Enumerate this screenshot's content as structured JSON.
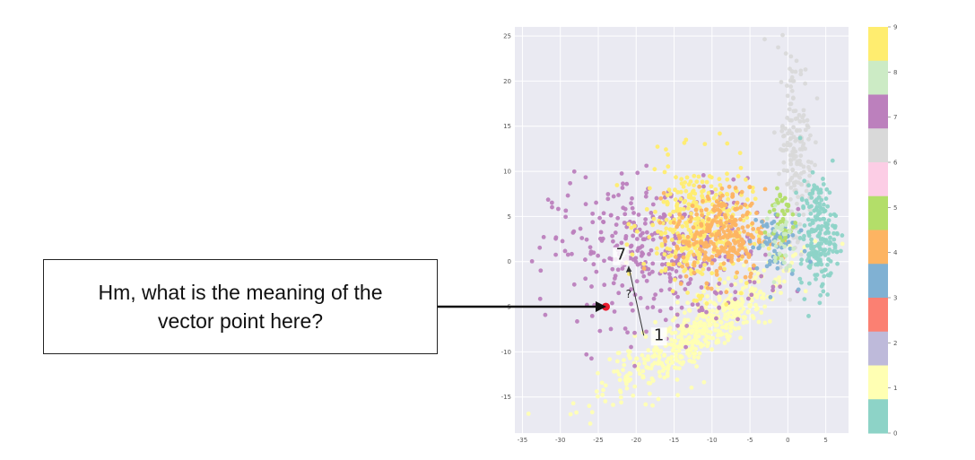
{
  "callout": {
    "text": "Hm, what is the meaning of the vector point here?"
  },
  "chart_data": {
    "type": "scatter",
    "title": "",
    "xlabel": "",
    "ylabel": "",
    "xlim": [
      -36,
      8
    ],
    "ylim": [
      -19,
      26
    ],
    "xticks": [
      -35,
      -30,
      -25,
      -20,
      -15,
      -10,
      -5,
      0,
      5
    ],
    "yticks": [
      -15,
      -10,
      -5,
      0,
      5,
      10,
      15,
      20,
      25
    ],
    "grid": true,
    "background": "#eaeaf2",
    "colorbar": {
      "labels": [
        "0",
        "1",
        "2",
        "3",
        "4",
        "5",
        "6",
        "7",
        "8",
        "9"
      ],
      "colors": [
        "#8dd3c7",
        "#ffffb3",
        "#bebada",
        "#fb8072",
        "#80b1d3",
        "#fdb462",
        "#b3de69",
        "#fccde5",
        "#d9d9d9",
        "#bc80bd",
        "#ccebc5",
        "#ffed6f"
      ]
    },
    "class_colors": {
      "0": "#8dd3c7",
      "1": "#ffffb3",
      "2": "#bebada",
      "3": "#80b1d3",
      "4": "#fdb462",
      "5": "#b3de69",
      "6": "#d9d9d9",
      "7": "#bc80bd",
      "8": "#ccebc5",
      "9": "#ffed6f"
    },
    "clusters": [
      {
        "name": "1",
        "center": [
          -12,
          -8
        ],
        "spread": [
          6,
          3.5
        ],
        "count": 520,
        "shape": "diag"
      },
      {
        "name": "7",
        "center": [
          -17,
          1
        ],
        "spread": [
          7,
          4
        ],
        "count": 380
      },
      {
        "name": "9",
        "center": [
          -12,
          4
        ],
        "spread": [
          3.5,
          3.5
        ],
        "count": 340
      },
      {
        "name": "4",
        "center": [
          -9,
          3
        ],
        "spread": [
          3,
          2.5
        ],
        "count": 260
      },
      {
        "name": "6",
        "center": [
          1,
          12
        ],
        "spread": [
          1.2,
          6
        ],
        "count": 180
      },
      {
        "name": "0",
        "center": [
          4,
          3
        ],
        "spread": [
          1.2,
          3
        ],
        "count": 200
      },
      {
        "name": "3",
        "center": [
          -2,
          2
        ],
        "spread": [
          1.5,
          2
        ],
        "count": 60
      },
      {
        "name": "5",
        "center": [
          -1,
          5
        ],
        "spread": [
          1,
          2
        ],
        "count": 40
      },
      {
        "name": "8",
        "center": [
          -1,
          2
        ],
        "spread": [
          1,
          2
        ],
        "count": 30
      }
    ],
    "highlight_point": {
      "x": -24,
      "y": -5,
      "color": "#e8192c"
    },
    "annotations": [
      {
        "text": "7",
        "x": -22,
        "y": 0.2
      },
      {
        "text": "1",
        "x": -17,
        "y": -8.7
      },
      {
        "text": "?",
        "x": -21,
        "y": -4
      }
    ],
    "vector": {
      "from": [
        -19,
        -8.2
      ],
      "to": [
        -21,
        -0.5
      ]
    }
  }
}
